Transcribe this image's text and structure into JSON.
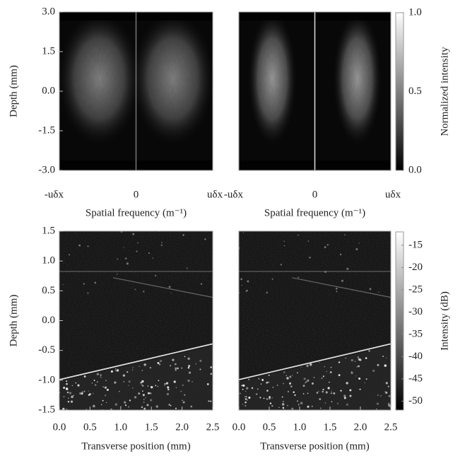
{
  "chart_data": [
    {
      "type": "image",
      "ylabel": "Depth (mm)",
      "xlabel": "Spatial frequency (m⁻¹)",
      "xtick_labels": [
        "-uδx",
        "0",
        "uδx"
      ],
      "ylim": [
        -3,
        3
      ],
      "yticks": [
        {
          "value": 3,
          "label": "3.0"
        },
        {
          "value": 1.5,
          "label": "1.5"
        },
        {
          "value": 0,
          "label": "0.0"
        },
        {
          "value": -1.5,
          "label": "-1.5"
        },
        {
          "value": -3,
          "label": "-3.0"
        }
      ]
    },
    {
      "type": "image",
      "xlabel": "Spatial frequency (m⁻¹)",
      "xtick_labels": [
        "-uδx",
        "0",
        "uδx"
      ],
      "ylim": [
        -3,
        3
      ],
      "colorbar": {
        "label": "Normalized intensity",
        "lim": [
          0,
          1
        ],
        "ticks": [
          {
            "value": 1,
            "label": "1.0"
          },
          {
            "value": 0.5,
            "label": "0.5"
          },
          {
            "value": 0,
            "label": "0.0"
          }
        ]
      }
    },
    {
      "type": "image",
      "ylabel": "Depth (mm)",
      "xlabel": "Transverse position (mm)",
      "xlim": [
        0,
        2.5
      ],
      "xticks": [
        {
          "value": 0,
          "label": "0.0"
        },
        0.5,
        {
          "value": 1,
          "label": "1.0"
        },
        1.5,
        {
          "value": 2,
          "label": "2.0"
        },
        2.5
      ],
      "ylim": [
        -1.5,
        1.5
      ],
      "yticks": [
        1.5,
        {
          "value": 1,
          "label": "1.0"
        },
        0.5,
        {
          "value": 0,
          "label": "0.0"
        },
        -0.5,
        {
          "value": -1,
          "label": "-1.0"
        },
        -1.5
      ]
    },
    {
      "type": "image",
      "xlabel": "Transverse position (mm)",
      "xlim": [
        0,
        2.5
      ],
      "xticks": [
        {
          "value": 0,
          "label": "0.0"
        },
        0.5,
        {
          "value": 1,
          "label": "1.0"
        },
        1.5,
        {
          "value": 2,
          "label": "2.0"
        },
        2.5
      ],
      "ylim": [
        -1.5,
        1.5
      ],
      "colorbar": {
        "label": "Intensity (dB)",
        "lim": [
          -52,
          -12
        ],
        "ticks": [
          -15,
          -20,
          -25,
          -30,
          -35,
          -40,
          -45,
          -50
        ]
      }
    }
  ]
}
